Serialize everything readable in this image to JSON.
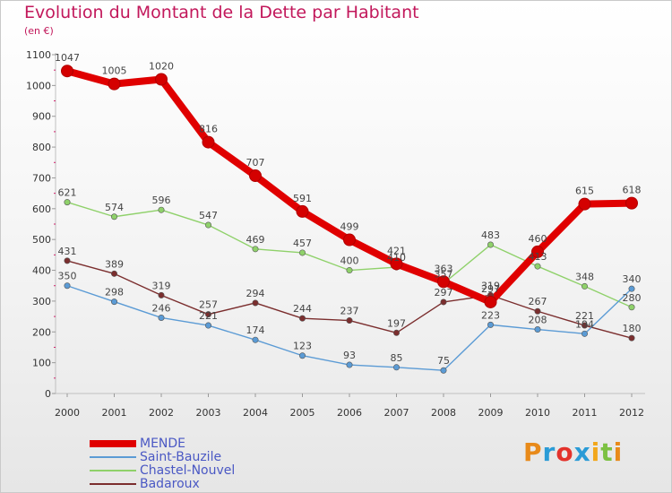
{
  "header": {
    "title": "Evolution du Montant de la Dette par Habitant",
    "subtitle": "(en €)"
  },
  "logo": {
    "text": "Proxiti",
    "colors": [
      "#e88a1a",
      "#2a9bd6",
      "#e3322b",
      "#2a9bd6",
      "#f2a71b",
      "#7cc142",
      "#e88a1a"
    ]
  },
  "chart_data": {
    "type": "line",
    "title": "Evolution du Montant de la Dette par Habitant",
    "subtitle": "(en €)",
    "xlabel": "",
    "ylabel": "",
    "x": [
      "2000",
      "2001",
      "2002",
      "2003",
      "2004",
      "2005",
      "2006",
      "2007",
      "2008",
      "2009",
      "2010",
      "2011",
      "2012"
    ],
    "ylim": [
      0,
      1100
    ],
    "yticks": [
      "0",
      "100",
      "200",
      "300",
      "400",
      "500",
      "600",
      "700",
      "800",
      "900",
      "1000",
      "1100"
    ],
    "grid": false,
    "legend_position": "bottom-left",
    "series": [
      {
        "name": "MENDE",
        "color": "#e00000",
        "values": [
          1047,
          1005,
          1020,
          816,
          707,
          591,
          499,
          421,
          363,
          297,
          460,
          615,
          618
        ]
      },
      {
        "name": "Saint-Bauzile",
        "color": "#5b9bd5",
        "values": [
          350,
          298,
          246,
          221,
          174,
          123,
          93,
          85,
          75,
          223,
          208,
          194,
          340
        ]
      },
      {
        "name": "Chastel-Nouvel",
        "color": "#8fd16a",
        "values": [
          621,
          574,
          596,
          547,
          469,
          457,
          400,
          410,
          357,
          483,
          413,
          348,
          280
        ]
      },
      {
        "name": "Badaroux",
        "color": "#7b2e2e",
        "values": [
          431,
          389,
          319,
          257,
          294,
          244,
          237,
          197,
          297,
          319,
          267,
          221,
          180
        ]
      }
    ]
  }
}
